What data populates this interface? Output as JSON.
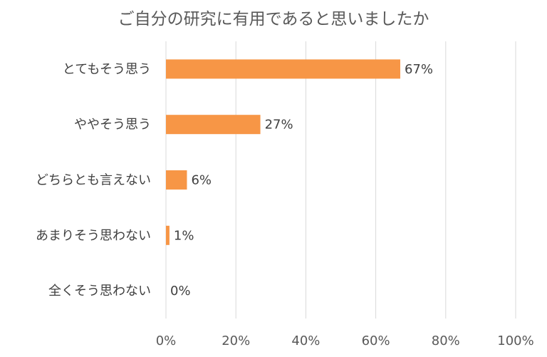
{
  "chart_data": {
    "type": "bar",
    "orientation": "horizontal",
    "title": "ご自分の研究に有用であると思いましたか",
    "categories": [
      "とてもそう思う",
      "ややそう思う",
      "どちらとも言えない",
      "あまりそう思わない",
      "全くそう思わない"
    ],
    "values": [
      67,
      27,
      6,
      1,
      0
    ],
    "data_labels": [
      "67%",
      "27%",
      "6%",
      "1%",
      "0%"
    ],
    "xlim": [
      0,
      100
    ],
    "ticks": [
      0,
      20,
      40,
      60,
      80,
      100
    ],
    "tick_labels": [
      "0%",
      "20%",
      "40%",
      "60%",
      "80%",
      "100%"
    ],
    "xlabel": "",
    "ylabel": "",
    "grid": true,
    "legend": "none",
    "bar_color": "#F79646"
  }
}
